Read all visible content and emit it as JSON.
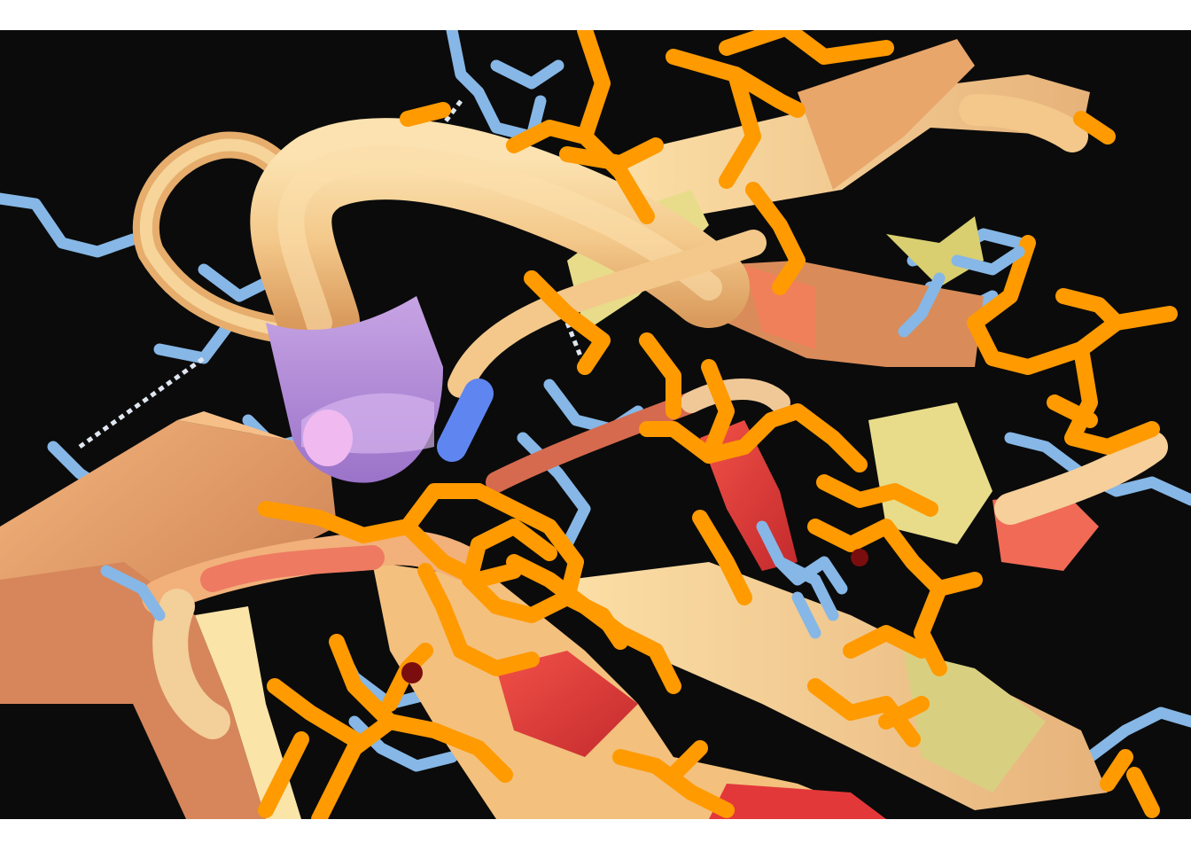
{
  "scene": {
    "background": "#0b0b0b",
    "frame_color": "#ffffff",
    "colors": {
      "ribbon_light": "#f6cf8c",
      "ribbon_mid": "#e8a66a",
      "ribbon_dark": "#c97d4e",
      "ribbon_red": "#e3383a",
      "ribbon_yellow": "#e8dc8a",
      "sidechain_orange": "#ff9a00",
      "sidechain_blue": "#86b7e6",
      "ligand_purple": "#b58ed8",
      "ligand_pink": "#f0b9f0",
      "ligand_blue": "#5f86f0"
    }
  }
}
